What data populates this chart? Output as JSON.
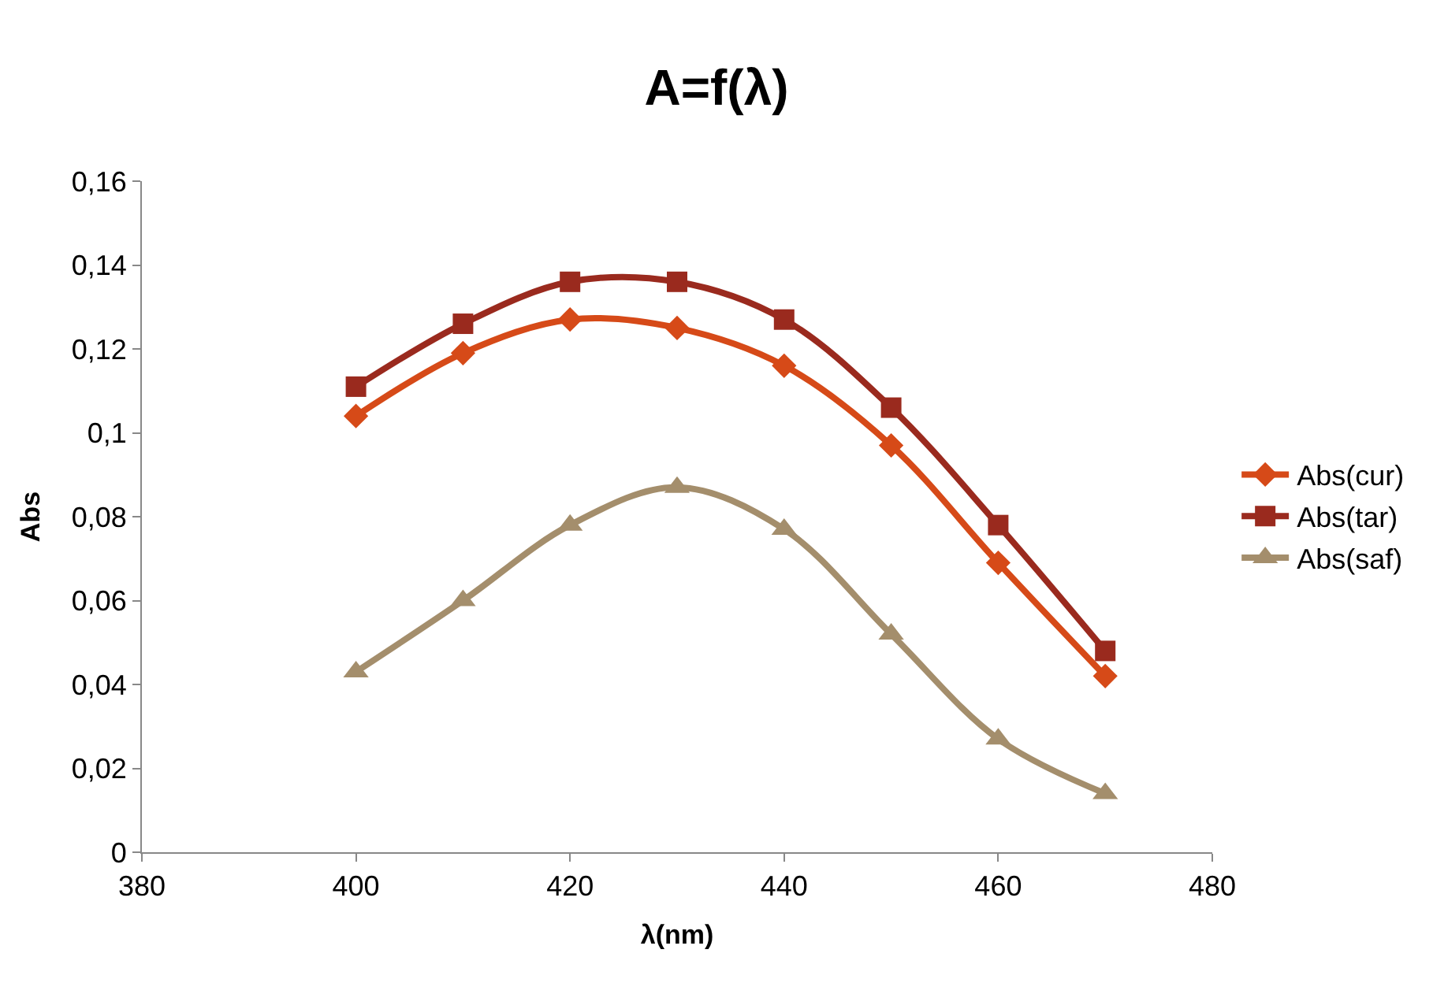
{
  "chart_data": {
    "type": "line",
    "title": "A=f(λ)",
    "xlabel": "λ(nm)",
    "ylabel": "Abs",
    "x": [
      400,
      410,
      420,
      430,
      440,
      450,
      460,
      470
    ],
    "series": [
      {
        "name": "Abs(cur)",
        "color": "#d64a18",
        "marker": "diamond",
        "values": [
          0.104,
          0.119,
          0.127,
          0.125,
          0.116,
          0.097,
          0.069,
          0.042
        ]
      },
      {
        "name": "Abs(tar)",
        "color": "#9a2a1e",
        "marker": "square",
        "values": [
          0.111,
          0.126,
          0.136,
          0.136,
          0.127,
          0.106,
          0.078,
          0.048
        ]
      },
      {
        "name": "Abs(saf)",
        "color": "#a48e6c",
        "marker": "triangle",
        "values": [
          0.043,
          0.06,
          0.078,
          0.087,
          0.077,
          0.052,
          0.027,
          0.014
        ]
      }
    ],
    "xlim": [
      380,
      480
    ],
    "xticks": [
      380,
      400,
      420,
      440,
      460,
      480
    ],
    "ylim": [
      0,
      0.16
    ],
    "yticks": [
      0,
      {
        "value": 0.02,
        "label": "0,02"
      },
      {
        "value": 0.04,
        "label": "0,04"
      },
      {
        "value": 0.06,
        "label": "0,06"
      },
      {
        "value": 0.08,
        "label": "0,08"
      },
      {
        "value": 0.1,
        "label": "0,1"
      },
      {
        "value": 0.12,
        "label": "0,12"
      },
      {
        "value": 0.14,
        "label": "0,14"
      },
      {
        "value": 0.16,
        "label": "0,16"
      }
    ],
    "legend": "right",
    "line_style": "solid"
  }
}
